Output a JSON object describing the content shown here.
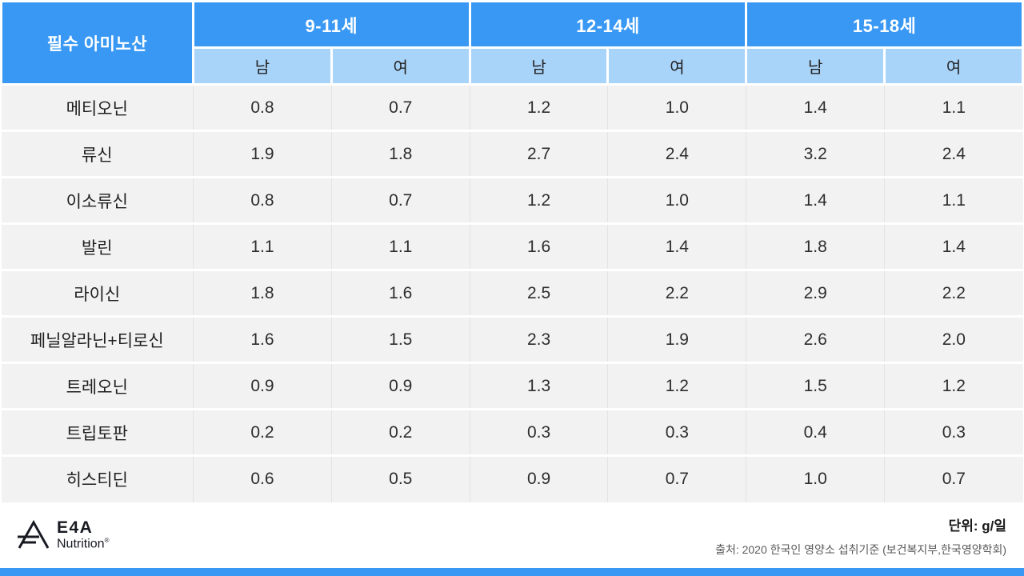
{
  "colors": {
    "header_blue": "#3898F4",
    "subheader_blue": "#A9D4FA",
    "row_bg": "#F2F2F2",
    "bottom_bar": "#3898F4"
  },
  "table": {
    "corner_label": "필수 아미노산",
    "age_groups": [
      "9-11세",
      "12-14세",
      "15-18세"
    ],
    "sex_labels": [
      "남",
      "여"
    ],
    "rows": [
      {
        "label": "메티오닌",
        "values": [
          "0.8",
          "0.7",
          "1.2",
          "1.0",
          "1.4",
          "1.1"
        ]
      },
      {
        "label": "류신",
        "values": [
          "1.9",
          "1.8",
          "2.7",
          "2.4",
          "3.2",
          "2.4"
        ]
      },
      {
        "label": "이소류신",
        "values": [
          "0.8",
          "0.7",
          "1.2",
          "1.0",
          "1.4",
          "1.1"
        ]
      },
      {
        "label": "발린",
        "values": [
          "1.1",
          "1.1",
          "1.6",
          "1.4",
          "1.8",
          "1.4"
        ]
      },
      {
        "label": "라이신",
        "values": [
          "1.8",
          "1.6",
          "2.5",
          "2.2",
          "2.9",
          "2.2"
        ]
      },
      {
        "label": "페닐알라닌+티로신",
        "values": [
          "1.6",
          "1.5",
          "2.3",
          "1.9",
          "2.6",
          "2.0"
        ]
      },
      {
        "label": "트레오닌",
        "values": [
          "0.9",
          "0.9",
          "1.3",
          "1.2",
          "1.5",
          "1.2"
        ]
      },
      {
        "label": "트립토판",
        "values": [
          "0.2",
          "0.2",
          "0.3",
          "0.3",
          "0.4",
          "0.3"
        ]
      },
      {
        "label": "히스티딘",
        "values": [
          "0.6",
          "0.5",
          "0.9",
          "0.7",
          "1.0",
          "0.7"
        ]
      }
    ]
  },
  "footer": {
    "logo_title": "E4A",
    "logo_subtitle": "Nutrition",
    "logo_reg": "®",
    "unit": "단위: g/일",
    "source": "출처: 2020 한국인 영양소 섭취기준 (보건복지부,한국영양학회)"
  },
  "chart_data": {
    "type": "table",
    "row_header": "필수 아미노산",
    "column_groups": [
      "9-11세",
      "12-14세",
      "15-18세"
    ],
    "sub_columns": [
      "남",
      "여"
    ],
    "columns": [
      "9-11세 남",
      "9-11세 여",
      "12-14세 남",
      "12-14세 여",
      "15-18세 남",
      "15-18세 여"
    ],
    "rows": [
      {
        "name": "메티오닌",
        "values": [
          0.8,
          0.7,
          1.2,
          1.0,
          1.4,
          1.1
        ]
      },
      {
        "name": "류신",
        "values": [
          1.9,
          1.8,
          2.7,
          2.4,
          3.2,
          2.4
        ]
      },
      {
        "name": "이소류신",
        "values": [
          0.8,
          0.7,
          1.2,
          1.0,
          1.4,
          1.1
        ]
      },
      {
        "name": "발린",
        "values": [
          1.1,
          1.1,
          1.6,
          1.4,
          1.8,
          1.4
        ]
      },
      {
        "name": "라이신",
        "values": [
          1.8,
          1.6,
          2.5,
          2.2,
          2.9,
          2.2
        ]
      },
      {
        "name": "페닐알라닌+티로신",
        "values": [
          1.6,
          1.5,
          2.3,
          1.9,
          2.6,
          2.0
        ]
      },
      {
        "name": "트레오닌",
        "values": [
          0.9,
          0.9,
          1.3,
          1.2,
          1.5,
          1.2
        ]
      },
      {
        "name": "트립토판",
        "values": [
          0.2,
          0.2,
          0.3,
          0.3,
          0.4,
          0.3
        ]
      },
      {
        "name": "히스티딘",
        "values": [
          0.6,
          0.5,
          0.9,
          0.7,
          1.0,
          0.7
        ]
      }
    ],
    "unit": "g/일",
    "source": "출처: 2020 한국인 영양소 섭취기준 (보건복지부,한국영양학회)"
  }
}
